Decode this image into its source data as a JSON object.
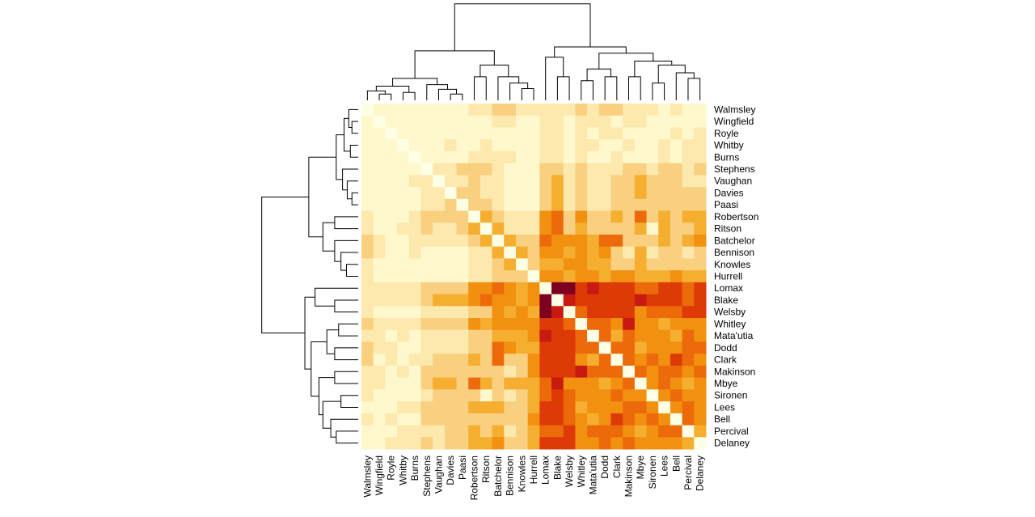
{
  "chart_data": {
    "type": "heatmap",
    "rows": [
      "Walmsley",
      "Wingfield",
      "Royle",
      "Whitby",
      "Burns",
      "Stephens",
      "Vaughan",
      "Davies",
      "Paasi",
      "Robertson",
      "Ritson",
      "Batchelor",
      "Bennison",
      "Knowles",
      "Hurrell",
      "Lomax",
      "Blake",
      "Welsby",
      "Whitley",
      "Mata'utia",
      "Dodd",
      "Clark",
      "Makinson",
      "Mbye",
      "Sironen",
      "Lees",
      "Bell",
      "Percival",
      "Delaney"
    ],
    "columns": [
      "Walmsley",
      "Wingfield",
      "Royle",
      "Whitby",
      "Burns",
      "Stephens",
      "Vaughan",
      "Davies",
      "Paasi",
      "Robertson",
      "Ritson",
      "Batchelor",
      "Bennison",
      "Knowles",
      "Hurrell",
      "Lomax",
      "Blake",
      "Welsby",
      "Whitley",
      "Mata'utia",
      "Dodd",
      "Clark",
      "Makinson",
      "Mbye",
      "Sironen",
      "Lees",
      "Bell",
      "Percival",
      "Delaney"
    ],
    "zlim": [
      0,
      9
    ],
    "colors": [
      "#FFFFE6",
      "#FFF8CC",
      "#FDE8AE",
      "#F9D080",
      "#F5AE30",
      "#F29010",
      "#EC6A0A",
      "#DE3A08",
      "#C81A10",
      "#7E0021"
    ],
    "values": [
      [
        0,
        1,
        1,
        1,
        1,
        1,
        1,
        1,
        1,
        2,
        2,
        3,
        3,
        2,
        2,
        2,
        2,
        2,
        3,
        2,
        3,
        3,
        2,
        2,
        2,
        1,
        2,
        1,
        1
      ],
      [
        1,
        0,
        1,
        1,
        1,
        1,
        1,
        1,
        1,
        1,
        1,
        2,
        2,
        1,
        1,
        2,
        2,
        1,
        2,
        2,
        2,
        1,
        2,
        2,
        1,
        1,
        1,
        1,
        1
      ],
      [
        1,
        1,
        0,
        1,
        1,
        1,
        1,
        1,
        1,
        1,
        1,
        1,
        1,
        1,
        1,
        2,
        2,
        1,
        2,
        1,
        2,
        2,
        1,
        1,
        1,
        1,
        2,
        1,
        2
      ],
      [
        1,
        1,
        1,
        0,
        1,
        1,
        1,
        2,
        1,
        1,
        2,
        1,
        1,
        1,
        1,
        2,
        2,
        1,
        2,
        2,
        1,
        1,
        2,
        1,
        1,
        2,
        1,
        2,
        2
      ],
      [
        1,
        1,
        1,
        1,
        0,
        1,
        1,
        1,
        1,
        2,
        2,
        2,
        2,
        1,
        1,
        2,
        2,
        1,
        2,
        1,
        1,
        2,
        1,
        1,
        1,
        2,
        1,
        2,
        2
      ],
      [
        1,
        1,
        1,
        1,
        1,
        0,
        2,
        2,
        3,
        3,
        3,
        2,
        1,
        1,
        1,
        3,
        3,
        2,
        3,
        2,
        2,
        2,
        3,
        3,
        2,
        3,
        3,
        2,
        3
      ],
      [
        1,
        1,
        1,
        1,
        2,
        2,
        0,
        2,
        2,
        3,
        2,
        2,
        1,
        1,
        1,
        3,
        4,
        2,
        3,
        2,
        2,
        3,
        3,
        4,
        3,
        3,
        3,
        2,
        2
      ],
      [
        1,
        1,
        1,
        1,
        1,
        2,
        2,
        0,
        3,
        3,
        2,
        2,
        1,
        1,
        1,
        3,
        4,
        2,
        3,
        2,
        2,
        3,
        3,
        4,
        3,
        3,
        3,
        3,
        3
      ],
      [
        1,
        1,
        1,
        1,
        1,
        2,
        2,
        3,
        0,
        3,
        3,
        2,
        1,
        1,
        1,
        3,
        4,
        2,
        3,
        2,
        2,
        3,
        3,
        3,
        3,
        3,
        3,
        3,
        3
      ],
      [
        2,
        1,
        1,
        1,
        2,
        3,
        3,
        3,
        3,
        0,
        4,
        3,
        2,
        2,
        2,
        5,
        6,
        3,
        5,
        3,
        3,
        4,
        3,
        6,
        3,
        4,
        3,
        4,
        4
      ],
      [
        2,
        1,
        1,
        2,
        2,
        3,
        2,
        2,
        3,
        4,
        0,
        4,
        2,
        2,
        2,
        5,
        6,
        3,
        4,
        3,
        3,
        3,
        3,
        4,
        1,
        4,
        3,
        3,
        4
      ],
      [
        3,
        2,
        1,
        1,
        2,
        2,
        2,
        2,
        2,
        3,
        4,
        0,
        4,
        3,
        3,
        6,
        5,
        5,
        5,
        4,
        6,
        6,
        3,
        3,
        3,
        4,
        3,
        4,
        5
      ],
      [
        3,
        2,
        1,
        1,
        2,
        1,
        1,
        1,
        1,
        2,
        2,
        4,
        0,
        4,
        3,
        5,
        5,
        4,
        5,
        4,
        5,
        3,
        2,
        4,
        2,
        3,
        3,
        2,
        3
      ],
      [
        2,
        1,
        1,
        1,
        1,
        1,
        1,
        1,
        1,
        2,
        2,
        3,
        4,
        0,
        3,
        4,
        4,
        5,
        5,
        4,
        4,
        3,
        3,
        4,
        3,
        3,
        3,
        3,
        3
      ],
      [
        2,
        1,
        1,
        1,
        1,
        1,
        1,
        1,
        1,
        2,
        2,
        3,
        3,
        3,
        0,
        5,
        5,
        4,
        5,
        5,
        4,
        5,
        5,
        4,
        4,
        4,
        5,
        4,
        4
      ],
      [
        2,
        2,
        2,
        2,
        2,
        3,
        3,
        3,
        3,
        5,
        5,
        6,
        5,
        4,
        5,
        0,
        9,
        9,
        7,
        8,
        7,
        7,
        7,
        6,
        6,
        7,
        7,
        6,
        7
      ],
      [
        2,
        2,
        2,
        2,
        2,
        3,
        4,
        4,
        4,
        5,
        6,
        5,
        5,
        4,
        5,
        9,
        0,
        8,
        7,
        7,
        7,
        7,
        7,
        8,
        7,
        7,
        7,
        6,
        7
      ],
      [
        2,
        1,
        1,
        1,
        1,
        2,
        2,
        2,
        2,
        3,
        3,
        5,
        4,
        5,
        4,
        9,
        8,
        0,
        6,
        7,
        7,
        7,
        7,
        5,
        6,
        6,
        6,
        7,
        7
      ],
      [
        3,
        2,
        2,
        2,
        2,
        3,
        3,
        3,
        3,
        5,
        4,
        5,
        5,
        5,
        5,
        7,
        7,
        6,
        0,
        6,
        6,
        5,
        8,
        5,
        5,
        4,
        5,
        5,
        5
      ],
      [
        2,
        2,
        1,
        2,
        1,
        2,
        2,
        2,
        2,
        3,
        3,
        4,
        4,
        4,
        5,
        8,
        7,
        7,
        6,
        0,
        6,
        4,
        6,
        5,
        5,
        5,
        4,
        6,
        5
      ],
      [
        3,
        2,
        2,
        1,
        1,
        2,
        2,
        2,
        2,
        3,
        3,
        6,
        5,
        4,
        4,
        7,
        7,
        7,
        6,
        6,
        0,
        6,
        6,
        4,
        5,
        5,
        5,
        6,
        6
      ],
      [
        3,
        1,
        2,
        1,
        2,
        2,
        3,
        3,
        3,
        4,
        3,
        6,
        3,
        3,
        5,
        7,
        7,
        7,
        5,
        4,
        6,
        0,
        6,
        5,
        6,
        5,
        7,
        6,
        5
      ],
      [
        2,
        2,
        1,
        2,
        1,
        3,
        3,
        3,
        3,
        3,
        3,
        3,
        2,
        3,
        5,
        7,
        7,
        7,
        8,
        6,
        6,
        6,
        0,
        6,
        5,
        6,
        6,
        5,
        6
      ],
      [
        2,
        2,
        1,
        1,
        1,
        3,
        4,
        4,
        3,
        6,
        4,
        3,
        4,
        4,
        4,
        6,
        8,
        5,
        5,
        5,
        4,
        5,
        6,
        0,
        5,
        6,
        5,
        4,
        5
      ],
      [
        2,
        1,
        1,
        1,
        1,
        2,
        3,
        3,
        3,
        3,
        1,
        3,
        2,
        3,
        4,
        6,
        7,
        6,
        5,
        5,
        5,
        6,
        5,
        5,
        0,
        5,
        6,
        5,
        5
      ],
      [
        1,
        1,
        1,
        2,
        2,
        3,
        3,
        3,
        3,
        4,
        4,
        4,
        3,
        3,
        4,
        7,
        7,
        6,
        4,
        5,
        5,
        5,
        6,
        6,
        5,
        0,
        5,
        6,
        5
      ],
      [
        2,
        1,
        2,
        1,
        1,
        3,
        3,
        3,
        3,
        3,
        3,
        3,
        3,
        3,
        5,
        7,
        7,
        6,
        5,
        4,
        5,
        7,
        6,
        5,
        6,
        5,
        0,
        6,
        5
      ],
      [
        1,
        1,
        1,
        2,
        2,
        2,
        2,
        3,
        3,
        4,
        3,
        4,
        2,
        3,
        4,
        6,
        6,
        7,
        5,
        6,
        6,
        6,
        5,
        4,
        5,
        6,
        6,
        0,
        4
      ],
      [
        1,
        1,
        2,
        2,
        2,
        3,
        2,
        3,
        3,
        4,
        4,
        5,
        3,
        3,
        4,
        7,
        7,
        7,
        5,
        5,
        6,
        5,
        6,
        5,
        5,
        5,
        5,
        4,
        0
      ]
    ]
  }
}
